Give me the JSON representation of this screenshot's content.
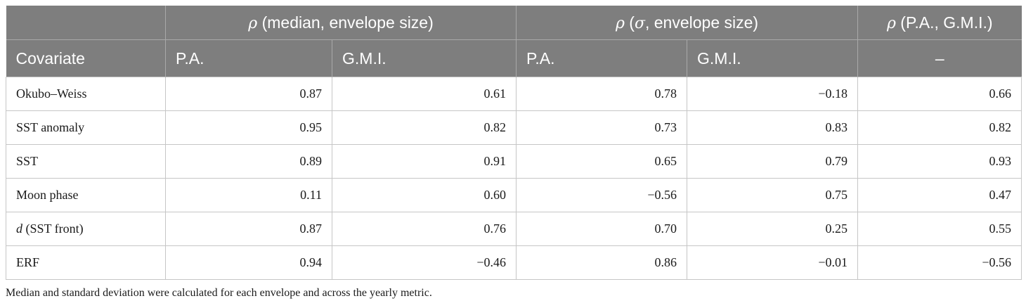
{
  "table": {
    "group_headers": {
      "median": {
        "symbol": "ρ",
        "text": " (median, envelope size)"
      },
      "sigma": {
        "symbol": "ρ",
        "open": " (",
        "sigma": "σ",
        "text": ", envelope size)"
      },
      "pa_gmi": {
        "symbol": "ρ",
        "text": " (P.A., G.M.I.)"
      }
    },
    "sub_headers": {
      "covariate": "Covariate",
      "median_pa": "P.A.",
      "median_gmi": "G.M.I.",
      "sigma_pa": "P.A.",
      "sigma_gmi": "G.M.I.",
      "dash": "–"
    },
    "rows": [
      {
        "label_italic": "",
        "label": "Okubo–Weiss",
        "values": [
          "0.87",
          "0.61",
          "0.78",
          "−0.18",
          "0.66"
        ]
      },
      {
        "label_italic": "",
        "label": "SST anomaly",
        "values": [
          "0.95",
          "0.82",
          "0.73",
          "0.83",
          "0.82"
        ]
      },
      {
        "label_italic": "",
        "label": "SST",
        "values": [
          "0.89",
          "0.91",
          "0.65",
          "0.79",
          "0.93"
        ]
      },
      {
        "label_italic": "",
        "label": "Moon phase",
        "values": [
          "0.11",
          "0.60",
          "−0.56",
          "0.75",
          "0.47"
        ]
      },
      {
        "label_italic": "d",
        "label": " (SST front)",
        "values": [
          "0.87",
          "0.76",
          "0.70",
          "0.25",
          "0.55"
        ]
      },
      {
        "label_italic": "",
        "label": "ERF",
        "values": [
          "0.94",
          "−0.46",
          "0.86",
          "−0.01",
          "−0.56"
        ]
      }
    ]
  },
  "footnote": "Median and standard deviation were calculated for each envelope and across the yearly metric.",
  "colors": {
    "header_bg": "#7e7e7e",
    "header_text": "#ffffff",
    "grid": "#c6c6c6"
  }
}
